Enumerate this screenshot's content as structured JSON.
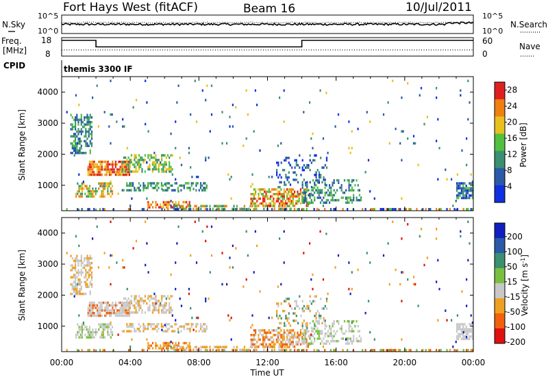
{
  "header": {
    "radar": "Fort Hays West (fitACF)",
    "beam": "Beam 16",
    "date": "10/Jul/2011"
  },
  "colors": {
    "power": [
      "#1030e0",
      "#2a5aa8",
      "#3a9070",
      "#52c040",
      "#e8c020",
      "#f08010",
      "#e02020"
    ],
    "velocity": [
      "#1020c0",
      "#2a5aa8",
      "#3a9070",
      "#7ac040",
      "#c8c8c8",
      "#f0a020",
      "#f06010",
      "#e01010"
    ]
  },
  "chart_data": [
    {
      "type": "line",
      "name": "status-top",
      "left_label": "N.Sky",
      "left_ticks": [
        "10^5",
        "10^0"
      ],
      "right_label": "N.Search",
      "right_ticks": [
        "10^5",
        "10^0"
      ]
    },
    {
      "type": "line",
      "name": "status-frequency",
      "left_label": "Freq. [MHz]",
      "left_ticks": [
        18,
        8
      ],
      "right_label": "Nave",
      "right_ticks": [
        60,
        0
      ],
      "frequency_steps": [
        {
          "from": "00:00",
          "to": "02:00",
          "mhz": 16.5
        },
        {
          "from": "02:00",
          "to": "14:00",
          "mhz": 13.0
        },
        {
          "from": "14:00",
          "to": "24:00",
          "mhz": 16.5
        }
      ]
    },
    {
      "type": "text",
      "name": "cpid",
      "label": "CPID",
      "value": "themis 3300 IF"
    },
    {
      "type": "heatmap",
      "name": "power",
      "ylabel": "Slant Range [km]",
      "ylim": [
        180,
        4500
      ],
      "yticks": [
        1000,
        2000,
        3000,
        4000
      ],
      "xlim": [
        "00:00",
        "24:00"
      ],
      "colorbar_label": "Power [dB]",
      "colorbar_ticks": [
        4,
        8,
        12,
        16,
        20,
        24,
        28
      ],
      "colorbar_range": [
        0,
        30
      ]
    },
    {
      "type": "heatmap",
      "name": "velocity",
      "ylabel": "Slant Range [km]",
      "ylim": [
        180,
        4500
      ],
      "yticks": [
        1000,
        2000,
        3000,
        4000
      ],
      "xlabel": "Time UT",
      "xticks": [
        "00:00",
        "04:00",
        "08:00",
        "12:00",
        "16:00",
        "20:00",
        "00:00"
      ],
      "colorbar_label": "Velocity [m s^-1]",
      "colorbar_ticks": [
        200,
        100,
        50,
        15,
        -15,
        -50,
        -100,
        -200
      ]
    }
  ]
}
